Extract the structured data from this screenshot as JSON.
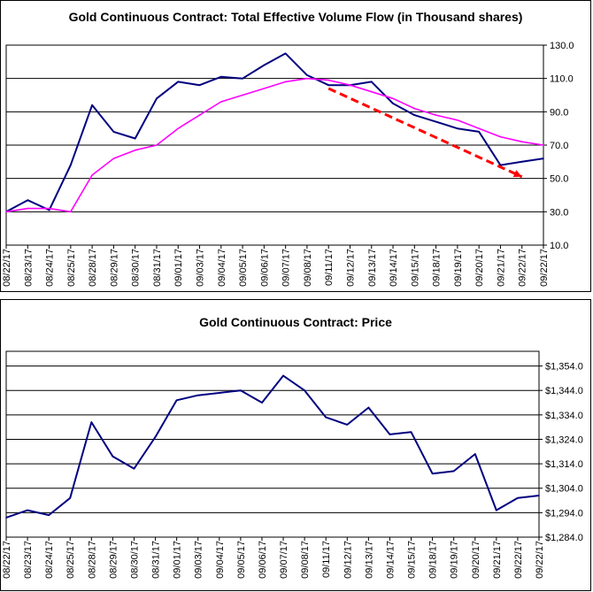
{
  "colors": {
    "volume": "#000080",
    "average": "#ff00ff",
    "trend": "#ff0000",
    "price": "#000080",
    "grid": "#000000"
  },
  "x_labels": [
    "08/22/17",
    "08/23/17",
    "08/24/17",
    "08/25/17",
    "08/28/17",
    "08/29/17",
    "08/30/17",
    "08/31/17",
    "09/01/17",
    "09/03/17",
    "09/04/17",
    "09/05/17",
    "09/06/17",
    "09/07/17",
    "09/08/17",
    "09/11/17",
    "09/12/17",
    "09/13/17",
    "09/14/17",
    "09/15/17",
    "09/18/17",
    "09/19/17",
    "09/20/17",
    "09/21/17",
    "09/22/17",
    "09/22/17"
  ],
  "chart_data": [
    {
      "type": "line",
      "title": "Gold Continuous Contract: Total Effective Volume Flow (in Thousand shares)",
      "ylabel": "",
      "ylim": [
        10,
        130
      ],
      "y_ticks": [
        "130.0",
        "110.0",
        "90.0",
        "70.0",
        "50.0",
        "30.0",
        "10.0"
      ],
      "y_tick_values": [
        130,
        110,
        90,
        70,
        50,
        30,
        10
      ],
      "y_axis_side": "right",
      "grid": true,
      "categories": [
        "08/22/17",
        "08/23/17",
        "08/24/17",
        "08/25/17",
        "08/28/17",
        "08/29/17",
        "08/30/17",
        "08/31/17",
        "09/01/17",
        "09/03/17",
        "09/04/17",
        "09/05/17",
        "09/06/17",
        "09/07/17",
        "09/08/17",
        "09/11/17",
        "09/12/17",
        "09/13/17",
        "09/14/17",
        "09/15/17",
        "09/18/17",
        "09/19/17",
        "09/20/17",
        "09/21/17",
        "09/22/17",
        "09/22/17"
      ],
      "series": [
        {
          "values": [
            30,
            37,
            31,
            58,
            94,
            78,
            74,
            98,
            108,
            106,
            111,
            110,
            118,
            125,
            112,
            106,
            106,
            108,
            95,
            88,
            84,
            80,
            78,
            58,
            60,
            62
          ]
        },
        {
          "values": [
            30,
            32,
            32,
            30,
            52,
            62,
            67,
            70,
            80,
            88,
            96,
            100,
            104,
            108,
            110,
            109,
            106,
            102,
            98,
            92,
            88,
            85,
            80,
            75,
            72,
            70
          ]
        }
      ],
      "trendline": {
        "from": [
          15,
          104
        ],
        "to": [
          24,
          51
        ]
      }
    },
    {
      "type": "line",
      "title": "Gold Continuous Contract: Price",
      "ylabel": "",
      "ylim": [
        1284,
        1360
      ],
      "y_ticks": [
        "$1,354.0",
        "$1,344.0",
        "$1,334.0",
        "$1,324.0",
        "$1,314.0",
        "$1,304.0",
        "$1,294.0",
        "$1,284.0"
      ],
      "y_tick_values": [
        1354,
        1344,
        1334,
        1324,
        1314,
        1304,
        1294,
        1284
      ],
      "y_axis_side": "right",
      "grid": true,
      "categories": [
        "08/22/17",
        "08/23/17",
        "08/24/17",
        "08/25/17",
        "08/28/17",
        "08/29/17",
        "08/30/17",
        "08/31/17",
        "09/01/17",
        "09/03/17",
        "09/04/17",
        "09/05/17",
        "09/06/17",
        "09/07/17",
        "09/08/17",
        "09/11/17",
        "09/12/17",
        "09/13/17",
        "09/14/17",
        "09/15/17",
        "09/18/17",
        "09/19/17",
        "09/20/17",
        "09/21/17",
        "09/22/17",
        "09/22/17"
      ],
      "series": [
        {
          "values": [
            1292,
            1295,
            1293,
            1300,
            1331,
            1317,
            1312,
            1325,
            1340,
            1342,
            1343,
            1344,
            1339,
            1350,
            1344,
            1333,
            1330,
            1337,
            1326,
            1327,
            1310,
            1311,
            1318,
            1295,
            1300,
            1301
          ]
        }
      ]
    }
  ]
}
